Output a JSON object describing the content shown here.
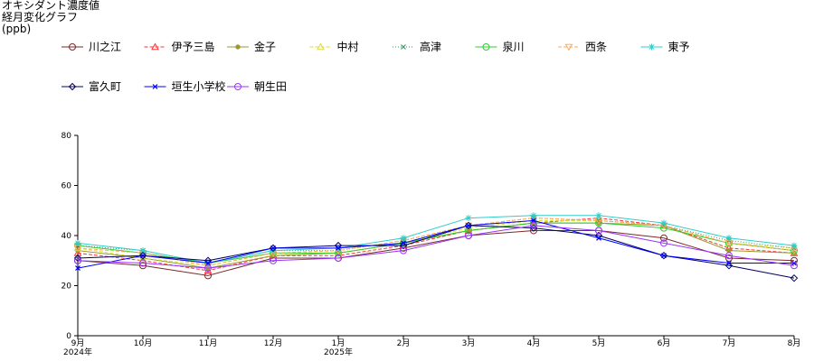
{
  "chart_data": {
    "type": "line",
    "title": "オキシダント濃度値",
    "subtitle": "経月変化グラフ",
    "ylabel": "(ppb)",
    "xlabel": "",
    "ylim": [
      0,
      80
    ],
    "yticks": [
      0,
      20,
      40,
      60,
      80
    ],
    "grid": false,
    "legend_position": "top",
    "categories": [
      "9月",
      "10月",
      "11月",
      "12月",
      "1月",
      "2月",
      "3月",
      "4月",
      "5月",
      "6月",
      "7月",
      "8月"
    ],
    "year_labels": [
      {
        "index": 0,
        "text": "2024年"
      },
      {
        "index": 4,
        "text": "2025年"
      }
    ],
    "series": [
      {
        "name": "川之江",
        "color": "#7a2a2a",
        "marker": "circle",
        "dash": "solid",
        "values": [
          30,
          28,
          24,
          31,
          31,
          35,
          40,
          42,
          42,
          39,
          31,
          30
        ]
      },
      {
        "name": "伊予三島",
        "color": "#ff3333",
        "marker": "triangle",
        "dash": "dashed",
        "values": [
          33,
          30,
          26,
          32,
          32,
          36,
          42,
          45,
          47,
          44,
          35,
          33
        ]
      },
      {
        "name": "金子",
        "color": "#999933",
        "marker": "dot",
        "dash": "solid",
        "values": [
          34,
          31,
          27,
          32,
          33,
          37,
          42,
          45,
          45,
          44,
          34,
          33
        ]
      },
      {
        "name": "中村",
        "color": "#dddd33",
        "marker": "triangle",
        "dash": "dashed",
        "values": [
          35,
          31,
          28,
          33,
          33,
          37,
          43,
          46,
          46,
          44,
          37,
          35
        ]
      },
      {
        "name": "高津",
        "color": "#339966",
        "marker": "x",
        "dash": "dotted",
        "values": [
          36,
          34,
          29,
          34,
          34,
          38,
          44,
          47,
          46,
          44,
          38,
          35
        ]
      },
      {
        "name": "泉川",
        "color": "#33cc33",
        "marker": "circle",
        "dash": "solid",
        "values": [
          36,
          33,
          29,
          33,
          33,
          37,
          42,
          45,
          45,
          43,
          37,
          34
        ]
      },
      {
        "name": "西条",
        "color": "#ffaa55",
        "marker": "triangle-down",
        "dash": "dashed",
        "values": [
          35,
          33,
          28,
          33,
          34,
          38,
          44,
          47,
          46,
          44,
          37,
          34
        ]
      },
      {
        "name": "東予",
        "color": "#33cccc",
        "marker": "star",
        "dash": "solid",
        "values": [
          37,
          34,
          29,
          34,
          35,
          39,
          47,
          48,
          48,
          45,
          39,
          36
        ]
      },
      {
        "name": "富久町",
        "color": "#000066",
        "marker": "diamond",
        "dash": "solid",
        "values": [
          31,
          32,
          30,
          35,
          36,
          36,
          44,
          43,
          40,
          32,
          28,
          23
        ]
      },
      {
        "name": "垣生小学校",
        "color": "#0000ff",
        "marker": "x",
        "dash": "solid",
        "values": [
          27,
          32,
          29,
          35,
          35,
          37,
          44,
          46,
          39,
          32,
          29,
          29
        ]
      },
      {
        "name": "朝生田",
        "color": "#9933ff",
        "marker": "circle",
        "dash": "solid",
        "values": [
          30,
          29,
          27,
          30,
          31,
          34,
          40,
          44,
          42,
          37,
          32,
          28
        ]
      }
    ]
  }
}
